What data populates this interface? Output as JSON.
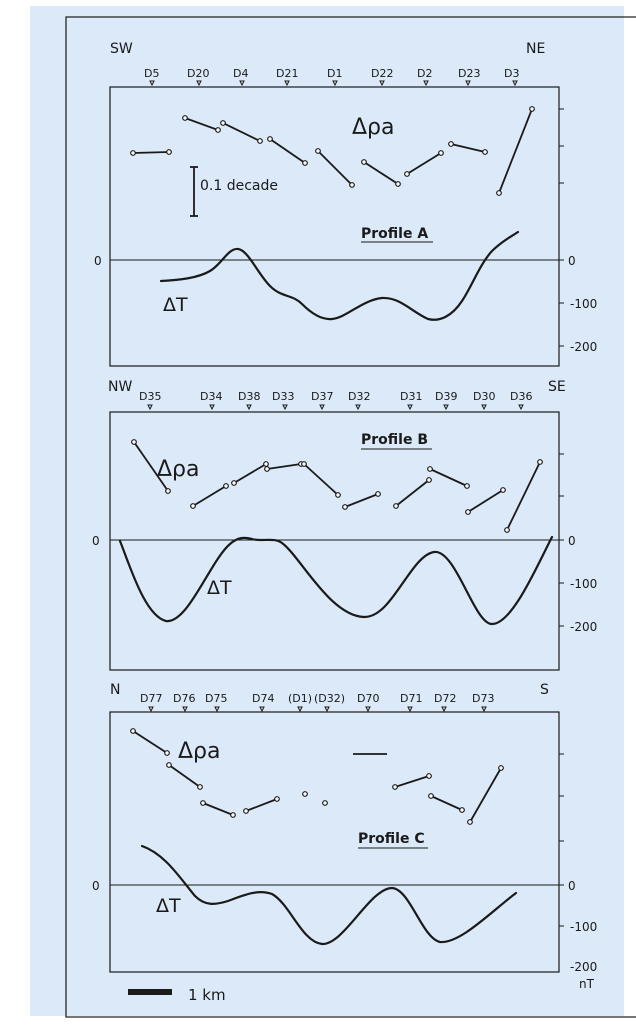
{
  "colors": {
    "background": "#dbe9f8",
    "ink": "#1a1a1a"
  },
  "decade_label": "0.1 decade",
  "scale_label": "1 km",
  "unit_label": "nT",
  "delta_rho_label": "Δρa",
  "delta_t_label": "ΔT",
  "profiles": [
    {
      "id": "A",
      "title": "Profile A",
      "dir_left": "SW",
      "dir_right": "NE",
      "stations": [
        "D5",
        "D20",
        "D4",
        "D21",
        "D1",
        "D22",
        "D2",
        "D23",
        "D3"
      ],
      "zero_label_left": "0",
      "ticks_right": [
        "0",
        "-100",
        "-200"
      ]
    },
    {
      "id": "B",
      "title": "Profile B",
      "dir_left": "NW",
      "dir_right": "SE",
      "stations": [
        "D35",
        "D34",
        "D38",
        "D33",
        "D37",
        "D32",
        "D31",
        "D39",
        "D30",
        "D36"
      ],
      "zero_label_left": "0",
      "ticks_right": [
        "0",
        "-100",
        "-200"
      ]
    },
    {
      "id": "C",
      "title": "Profile C",
      "dir_left": "N",
      "dir_right": "S",
      "stations": [
        "D77",
        "D76",
        "D75",
        "D74",
        "(D1)",
        "(D32)",
        "D70",
        "D71",
        "D72",
        "D73"
      ],
      "zero_label_left": "0",
      "ticks_right": [
        "0",
        "-100",
        "-200"
      ]
    }
  ]
}
